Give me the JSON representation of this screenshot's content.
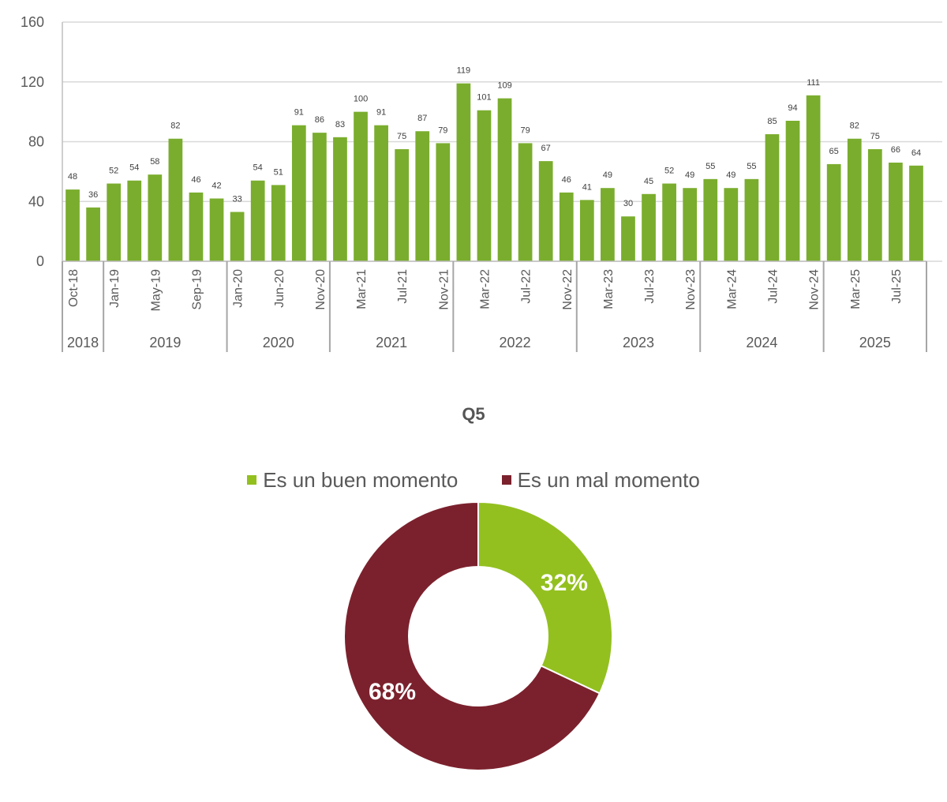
{
  "chart_data": [
    {
      "type": "bar",
      "title": "",
      "xlabel": "",
      "ylabel": "",
      "ylim": [
        0,
        160
      ],
      "yticks": [
        "0",
        "40",
        "80",
        "120",
        "160"
      ],
      "grid": true,
      "color": "#7aad2d",
      "values": [
        48,
        36,
        52,
        54,
        58,
        82,
        46,
        42,
        33,
        54,
        51,
        91,
        86,
        83,
        100,
        91,
        75,
        87,
        79,
        119,
        101,
        109,
        79,
        67,
        46,
        41,
        49,
        30,
        45,
        52,
        49,
        55,
        49,
        55,
        85,
        94,
        111,
        65,
        82,
        75,
        66,
        64
      ],
      "month_labels": [
        {
          "index": 0,
          "text": "Oct-18"
        },
        {
          "index": 2,
          "text": "Jan-19"
        },
        {
          "index": 4,
          "text": "May-19"
        },
        {
          "index": 6,
          "text": "Sep-19"
        },
        {
          "index": 8,
          "text": "Jan-20"
        },
        {
          "index": 10,
          "text": "Jun-20"
        },
        {
          "index": 12,
          "text": "Nov-20"
        },
        {
          "index": 14,
          "text": "Mar-21"
        },
        {
          "index": 16,
          "text": "Jul-21"
        },
        {
          "index": 18,
          "text": "Nov-21"
        },
        {
          "index": 20,
          "text": "Mar-22"
        },
        {
          "index": 22,
          "text": "Jul-22"
        },
        {
          "index": 24,
          "text": "Nov-22"
        },
        {
          "index": 26,
          "text": "Mar-23"
        },
        {
          "index": 28,
          "text": "Jul-23"
        },
        {
          "index": 30,
          "text": "Nov-23"
        },
        {
          "index": 32,
          "text": "Mar-24"
        },
        {
          "index": 34,
          "text": "Jul-24"
        },
        {
          "index": 36,
          "text": "Nov-24"
        },
        {
          "index": 38,
          "text": "Mar-25"
        },
        {
          "index": 40,
          "text": "Jul-25"
        }
      ],
      "year_groups": [
        {
          "label": "2018",
          "start": 0,
          "end": 1
        },
        {
          "label": "2019",
          "start": 2,
          "end": 7
        },
        {
          "label": "2020",
          "start": 8,
          "end": 12
        },
        {
          "label": "2021",
          "start": 13,
          "end": 18
        },
        {
          "label": "2022",
          "start": 19,
          "end": 24
        },
        {
          "label": "2023",
          "start": 25,
          "end": 30
        },
        {
          "label": "2024",
          "start": 31,
          "end": 36
        },
        {
          "label": "2025",
          "start": 37,
          "end": 41
        }
      ]
    },
    {
      "type": "pie",
      "title": "Q5",
      "legend_position": "top",
      "slices": [
        {
          "name": "Es un buen momento",
          "value": 32,
          "label": "32%",
          "color": "#93c01f"
        },
        {
          "name": "Es un mal momento",
          "value": 68,
          "label": "68%",
          "color": "#7b212d"
        }
      ]
    }
  ]
}
